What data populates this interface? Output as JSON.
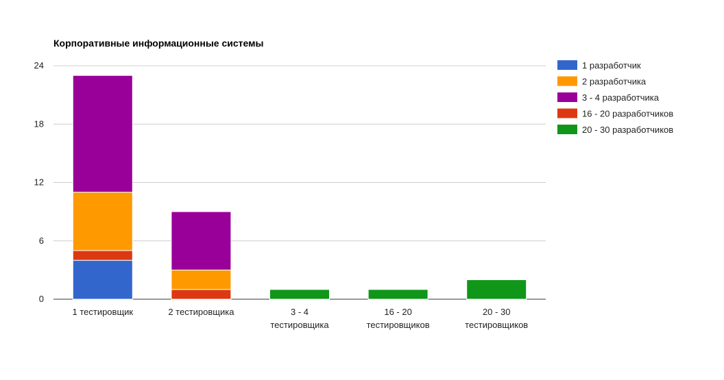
{
  "chart_data": {
    "type": "bar",
    "stacked": true,
    "title": "Корпоративные информационные системы",
    "xlabel": "",
    "ylabel": "",
    "ylim": [
      0,
      24
    ],
    "yticks": [
      "0",
      "6",
      "12",
      "18",
      "24"
    ],
    "grid": true,
    "legend_position": "right",
    "categories": [
      [
        "1 тестировщик"
      ],
      [
        "2 тестировщика"
      ],
      [
        "3 - 4",
        "тестировщика"
      ],
      [
        "16 - 20",
        "тестировщиков"
      ],
      [
        "20 - 30",
        "тестировщиков"
      ]
    ],
    "stack_order": [
      "1 разработчик",
      "16 - 20 разработчиков",
      "2 разработчика",
      "3 - 4 разработчика",
      "20 - 30 разработчиков"
    ],
    "series": [
      {
        "name": "1 разработчик",
        "color": "#3366cc",
        "values": [
          4,
          0,
          0,
          0,
          0
        ]
      },
      {
        "name": "2 разработчика",
        "color": "#ff9900",
        "values": [
          6,
          2,
          0,
          0,
          0
        ]
      },
      {
        "name": "3 - 4 разработчика",
        "color": "#990099",
        "values": [
          12,
          6,
          0,
          0,
          0
        ]
      },
      {
        "name": "16 - 20 разработчиков",
        "color": "#dc3912",
        "values": [
          1,
          1,
          0,
          0,
          0
        ]
      },
      {
        "name": "20 - 30 разработчиков",
        "color": "#109618",
        "values": [
          0,
          0,
          1,
          1,
          2
        ]
      }
    ]
  }
}
